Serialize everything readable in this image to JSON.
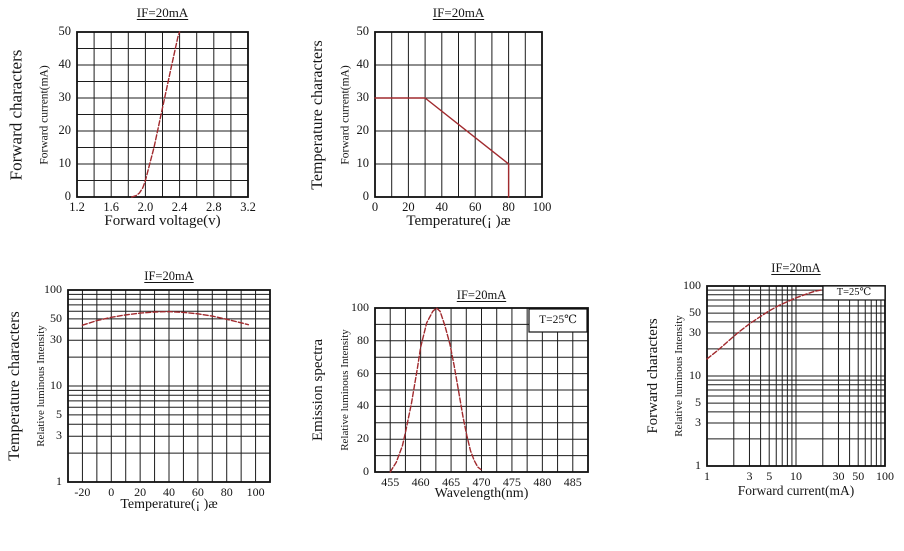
{
  "page": {
    "background": "#ffffff"
  },
  "colors": {
    "curve": "#a12a2e",
    "grid": "#1c1c1c",
    "border": "#111111",
    "text": "#151515"
  },
  "chart_data": [
    {
      "id": "forward-characteristics-vf",
      "type": "line",
      "title": "IF=20mA",
      "group_label": "Forward characters",
      "ylabel": "Forward current(mA)",
      "xlabel": "Forward voltage(v)",
      "x_axis": {
        "scale": "linear",
        "min": 1.2,
        "max": 3.2,
        "grid_step": 0.2,
        "tick_values": [
          1.2,
          1.6,
          2.0,
          2.4,
          2.8,
          3.2
        ],
        "tick_labels": [
          "1.2",
          "1.6",
          "2.0",
          "2.4",
          "2.8",
          "3.2"
        ]
      },
      "y_axis": {
        "scale": "linear",
        "min": 0,
        "max": 50,
        "grid_step": 5,
        "tick_values": [
          0,
          10,
          20,
          30,
          40,
          50
        ],
        "tick_labels": [
          "0",
          "10",
          "20",
          "30",
          "40",
          "50"
        ]
      },
      "series": [
        {
          "points": [
            [
              1.84,
              0
            ],
            [
              1.89,
              0.4
            ],
            [
              1.93,
              1.2
            ],
            [
              1.97,
              2.8
            ],
            [
              2.0,
              5
            ],
            [
              2.05,
              10
            ],
            [
              2.1,
              15
            ],
            [
              2.2,
              27
            ],
            [
              2.3,
              39
            ],
            [
              2.38,
              48.5
            ],
            [
              2.4,
              50
            ]
          ]
        }
      ]
    },
    {
      "id": "temperature-characteristics-derating",
      "type": "line",
      "title": "IF=20mA",
      "group_label": "Temperature characters",
      "ylabel": "Forward current(mA)",
      "xlabel": "Temperature(¡ )æ",
      "x_axis": {
        "scale": "linear",
        "min": 0,
        "max": 100,
        "grid_step": 10,
        "tick_values": [
          0,
          20,
          40,
          60,
          80,
          100
        ],
        "tick_labels": [
          "0",
          "20",
          "40",
          "60",
          "80",
          "100"
        ]
      },
      "y_axis": {
        "scale": "linear",
        "min": 0,
        "max": 50,
        "grid_step": 10,
        "tick_values": [
          0,
          10,
          20,
          30,
          40,
          50
        ],
        "tick_labels": [
          "0",
          "10",
          "20",
          "30",
          "40",
          "50"
        ]
      },
      "series": [
        {
          "points": [
            [
              0,
              30
            ],
            [
              30,
              30
            ],
            [
              80,
              10
            ],
            [
              80,
              0
            ]
          ]
        }
      ]
    },
    {
      "id": "temperature-characteristics-luminous",
      "type": "line",
      "title": "IF=20mA",
      "group_label": "Temperature characters",
      "ylabel": "Relative luminous Intensity",
      "xlabel": "Temperature(¡ )æ",
      "x_axis": {
        "scale": "linear",
        "min": -30,
        "max": 110,
        "grid_step": 10,
        "tick_values": [
          -20,
          0,
          20,
          40,
          60,
          80,
          100
        ],
        "tick_labels": [
          "-20",
          "0",
          "20",
          "40",
          "60",
          "80",
          "100"
        ]
      },
      "y_axis": {
        "scale": "log",
        "min": 1,
        "max": 100,
        "tick_values": [
          1,
          3,
          5,
          10,
          30,
          50,
          100
        ],
        "tick_labels": [
          "1",
          "3",
          "5",
          "10",
          "30",
          "50",
          "100"
        ]
      },
      "series": [
        {
          "points": [
            [
              -20,
              43
            ],
            [
              -10,
              48
            ],
            [
              0,
              52
            ],
            [
              10,
              55
            ],
            [
              20,
              57.5
            ],
            [
              30,
              59
            ],
            [
              40,
              59.5
            ],
            [
              50,
              58.5
            ],
            [
              60,
              56.5
            ],
            [
              70,
              53.5
            ],
            [
              80,
              49.5
            ],
            [
              90,
              45.5
            ],
            [
              95,
              43.5
            ]
          ]
        }
      ]
    },
    {
      "id": "emission-spectra",
      "type": "line",
      "title": "IF=20mA",
      "corner_note": "T=25℃",
      "group_label": "Emission spectra",
      "ylabel": "Relative luminous Intensity",
      "xlabel": "Wavelength(nm)",
      "x_axis": {
        "scale": "linear",
        "min": 452.5,
        "max": 487.5,
        "grid_step": 2.5,
        "tick_values": [
          455,
          460,
          465,
          470,
          475,
          480,
          485
        ],
        "tick_labels": [
          "455",
          "460",
          "465",
          "470",
          "475",
          "480",
          "485"
        ]
      },
      "y_axis": {
        "scale": "linear",
        "min": 0,
        "max": 100,
        "grid_step": 10,
        "tick_values": [
          0,
          20,
          40,
          60,
          80,
          100
        ],
        "tick_labels": [
          "0",
          "20",
          "40",
          "60",
          "80",
          "100"
        ]
      },
      "series": [
        {
          "points": [
            [
              455,
              0
            ],
            [
              456,
              6
            ],
            [
              457,
              16
            ],
            [
              457.5,
              24
            ],
            [
              458.5,
              42
            ],
            [
              459.5,
              64
            ],
            [
              460,
              76
            ],
            [
              461,
              91
            ],
            [
              462,
              98
            ],
            [
              462.6,
              100
            ],
            [
              463.2,
              98
            ],
            [
              464,
              89
            ],
            [
              464.8,
              78
            ],
            [
              465.5,
              65
            ],
            [
              466.2,
              50
            ],
            [
              467,
              33
            ],
            [
              467.6,
              22
            ],
            [
              468.2,
              13
            ],
            [
              468.8,
              7
            ],
            [
              469.4,
              3
            ],
            [
              469.9,
              1.5
            ]
          ]
        }
      ]
    },
    {
      "id": "forward-characteristics-luminous",
      "type": "line",
      "title": "IF=20mA",
      "corner_note": "T=25℃",
      "group_label": "Forward characters",
      "ylabel": "Relative luminous Intensity",
      "xlabel": "Forward current(mA)",
      "x_axis": {
        "scale": "log",
        "min": 1,
        "max": 100,
        "tick_values": [
          1,
          3,
          5,
          10,
          30,
          50,
          100
        ],
        "tick_labels": [
          "1",
          "3",
          "5",
          "10",
          "30",
          "50",
          "100"
        ]
      },
      "y_axis": {
        "scale": "log",
        "min": 1,
        "max": 100,
        "tick_values": [
          1,
          3,
          5,
          10,
          30,
          50,
          100
        ],
        "tick_labels": [
          "1",
          "3",
          "5",
          "10",
          "30",
          "50",
          "100"
        ]
      },
      "series": [
        {
          "points": [
            [
              1,
              15.5
            ],
            [
              1.3,
              19
            ],
            [
              1.7,
              24
            ],
            [
              2.2,
              30
            ],
            [
              3,
              38
            ],
            [
              4,
              46
            ],
            [
              5,
              53
            ],
            [
              6.5,
              61
            ],
            [
              8,
              67
            ],
            [
              10,
              74
            ],
            [
              13,
              81
            ],
            [
              16,
              87
            ],
            [
              19,
              90
            ]
          ]
        }
      ]
    }
  ]
}
